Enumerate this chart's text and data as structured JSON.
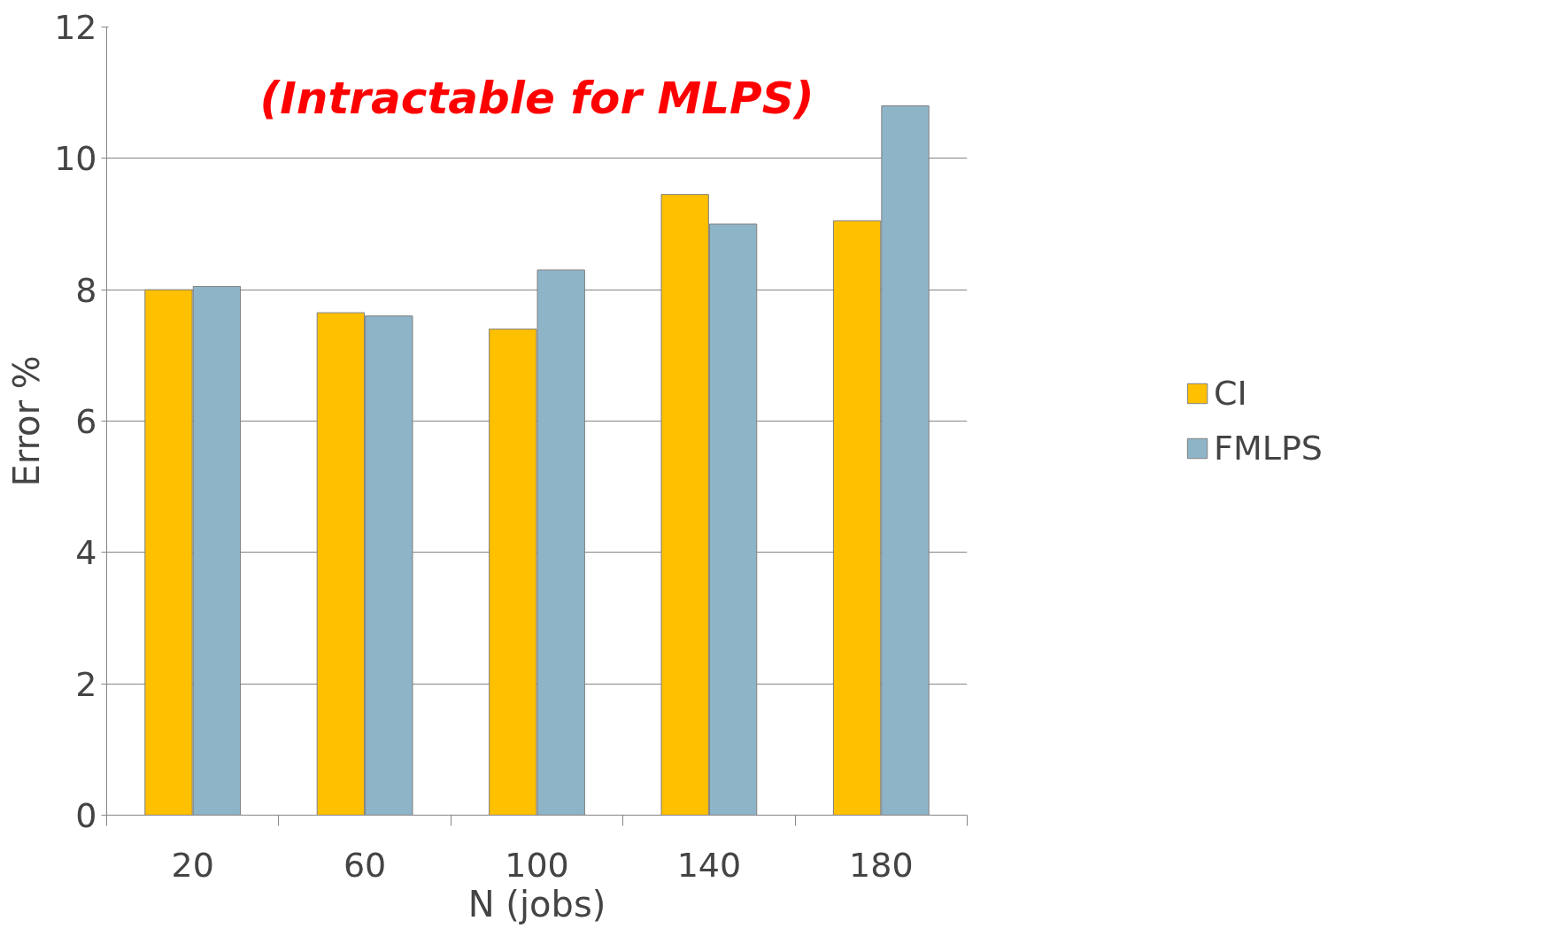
{
  "chart_data": {
    "type": "bar",
    "xlabel": "N (jobs)",
    "ylabel": "Error %",
    "categories": [
      "20",
      "60",
      "100",
      "140",
      "180"
    ],
    "series": [
      {
        "name": "CI",
        "color": "#ffc000",
        "values": [
          8.0,
          7.65,
          7.4,
          9.45,
          9.05
        ]
      },
      {
        "name": "FMLPS",
        "color": "#8eb4c8",
        "values": [
          8.05,
          7.6,
          8.3,
          9.0,
          10.8
        ]
      }
    ],
    "ylim": [
      0,
      12
    ],
    "yticks": [
      0,
      2,
      4,
      6,
      8,
      10,
      12
    ],
    "grid": "y",
    "legend": "right",
    "annotations": [
      "(Intractable for MLPS)"
    ]
  }
}
